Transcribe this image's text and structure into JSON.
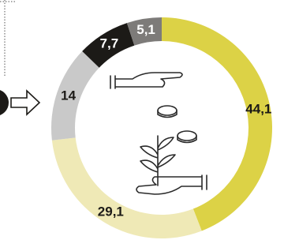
{
  "chart_data": {
    "type": "donut",
    "values": [
      44.1,
      29.1,
      14,
      7.7,
      5.1
    ],
    "value_labels": [
      "44,1",
      "29,1",
      "14",
      "7,7",
      "5,1"
    ],
    "colors": [
      "#dcd246",
      "#efe9b6",
      "#c9c9c9",
      "#1c1a17",
      "#7d7b79"
    ],
    "label_colors": [
      "#1c1a17",
      "#1c1a17",
      "#1c1a17",
      "#ffffff",
      "#ffffff"
    ]
  }
}
